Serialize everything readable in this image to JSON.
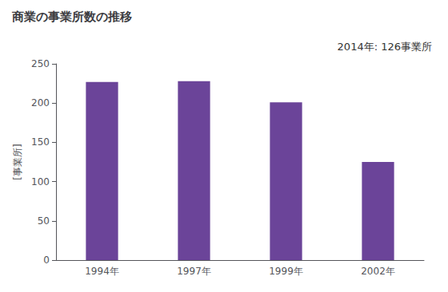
{
  "chart_data": {
    "type": "bar",
    "title": "商業の事業所数の推移",
    "ylabel": "[事業所]",
    "annotation": "2014年: 126事業所",
    "categories": [
      "1994年",
      "1997年",
      "1999年",
      "2002年"
    ],
    "values": [
      227,
      228,
      201,
      125
    ],
    "color": "#6b4499",
    "ylim": [
      0,
      250
    ],
    "yticks": [
      0,
      50,
      100,
      150,
      200,
      250
    ],
    "grid": false
  }
}
